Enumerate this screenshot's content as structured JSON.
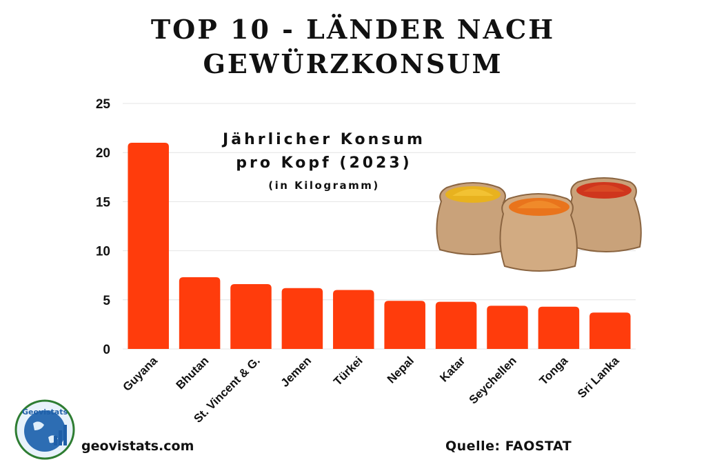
{
  "title_line1": "TOP 10 - LÄNDER NACH",
  "title_line2": "GEWÜRZKONSUM",
  "subtitle_line1": "Jährlicher Konsum",
  "subtitle_line2": "pro Kopf (2023)",
  "subtitle_line3": "(in Kilogramm)",
  "footer": {
    "website": "geovistats.com",
    "source": "Quelle: FAOSTAT"
  },
  "logo": {
    "text": "Geovistats",
    "icon": "globe-chart-logo"
  },
  "illustration": {
    "icon": "spice-sacks-illustration",
    "colors": [
      "#f2b01e",
      "#ec7a1c",
      "#d63a1e"
    ]
  },
  "colors": {
    "bar": "#ff3c0c",
    "grid": "#e4e4e4",
    "text": "#111111"
  },
  "chart_data": {
    "type": "bar",
    "categories": [
      "Guyana",
      "Bhutan",
      "St. Vincent & G.",
      "Jemen",
      "Türkei",
      "Nepal",
      "Katar",
      "Seychellen",
      "Tonga",
      "Sri Lanka"
    ],
    "values": [
      21.0,
      7.3,
      6.6,
      6.2,
      6.0,
      4.9,
      4.8,
      4.4,
      4.3,
      3.7
    ],
    "ylim": [
      0,
      25
    ],
    "yticks": [
      0,
      5,
      10,
      15,
      20,
      25
    ],
    "xlabel": "",
    "ylabel": "",
    "grid": true
  }
}
